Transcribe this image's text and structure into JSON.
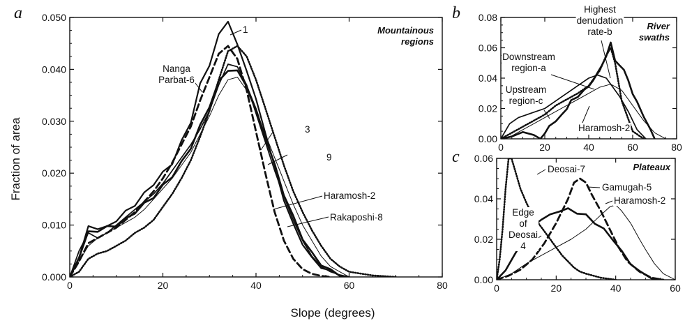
{
  "figure": {
    "xlabel": "Slope (degrees)",
    "ylabel": "Fraction of area"
  },
  "chart_data": [
    {
      "panel": "a",
      "type": "line",
      "title": "Mountainous regions",
      "title_lines": [
        "Mountainous",
        "regions"
      ],
      "xlim": [
        0,
        80
      ],
      "ylim": [
        0,
        0.05
      ],
      "xticks": [
        0,
        20,
        40,
        60,
        80
      ],
      "yticks": [
        0.0,
        0.01,
        0.02,
        0.03,
        0.04,
        0.05
      ],
      "ytick_labels": [
        "0.000",
        "0.010",
        "0.020",
        "0.030",
        "0.040",
        "0.050"
      ],
      "grid": false,
      "series": [
        {
          "name": "1",
          "style": "dotted",
          "x": [
            0,
            2,
            4,
            6,
            8,
            10,
            12,
            14,
            16,
            18,
            20,
            22,
            24,
            26,
            28,
            30,
            32,
            34,
            36,
            38,
            40,
            42,
            44,
            46,
            48,
            50,
            52,
            54,
            56,
            58,
            60,
            65,
            70
          ],
          "y": [
            0,
            0.001,
            0.0035,
            0.0045,
            0.005,
            0.006,
            0.007,
            0.0085,
            0.0095,
            0.011,
            0.0135,
            0.016,
            0.019,
            0.0225,
            0.027,
            0.032,
            0.038,
            0.0435,
            0.0445,
            0.0425,
            0.038,
            0.0325,
            0.027,
            0.0215,
            0.0165,
            0.0125,
            0.009,
            0.006,
            0.0035,
            0.002,
            0.001,
            0.0003,
            0
          ]
        },
        {
          "name": "3",
          "style": "solid-thick",
          "x": [
            0,
            2,
            4,
            6,
            8,
            10,
            12,
            14,
            16,
            18,
            20,
            22,
            24,
            26,
            28,
            30,
            32,
            34,
            36,
            38,
            40,
            42,
            44,
            46,
            48,
            50,
            52,
            54,
            56,
            58,
            60
          ],
          "y": [
            0,
            0.004,
            0.0085,
            0.009,
            0.0095,
            0.01,
            0.011,
            0.0125,
            0.014,
            0.0155,
            0.0175,
            0.0195,
            0.022,
            0.025,
            0.029,
            0.033,
            0.0375,
            0.04,
            0.0395,
            0.037,
            0.032,
            0.027,
            0.0215,
            0.016,
            0.0115,
            0.0075,
            0.0045,
            0.0025,
            0.0012,
            0.0005,
            0
          ]
        },
        {
          "name": "9",
          "style": "solid-thin",
          "x": [
            0,
            2,
            4,
            6,
            8,
            10,
            12,
            14,
            16,
            18,
            20,
            22,
            24,
            26,
            28,
            30,
            32,
            34,
            36,
            38,
            40,
            42,
            44,
            46,
            48,
            50,
            52,
            54,
            56,
            58,
            60
          ],
          "y": [
            0,
            0.003,
            0.006,
            0.0075,
            0.0085,
            0.0095,
            0.0105,
            0.0115,
            0.013,
            0.015,
            0.017,
            0.019,
            0.0215,
            0.024,
            0.0275,
            0.031,
            0.035,
            0.038,
            0.0385,
            0.036,
            0.032,
            0.0275,
            0.023,
            0.0185,
            0.014,
            0.01,
            0.007,
            0.004,
            0.002,
            0.001,
            0
          ]
        },
        {
          "name": "Haramosh-2",
          "style": "solid-medium",
          "x": [
            0,
            2,
            4,
            6,
            8,
            10,
            12,
            14,
            16,
            18,
            20,
            22,
            24,
            26,
            28,
            30,
            32,
            34,
            36,
            38,
            40,
            42,
            44,
            46,
            48,
            50,
            52,
            54,
            56,
            58,
            60
          ],
          "y": [
            0,
            0.005,
            0.0085,
            0.0075,
            0.0085,
            0.01,
            0.0115,
            0.013,
            0.0145,
            0.016,
            0.018,
            0.0205,
            0.023,
            0.0255,
            0.0285,
            0.032,
            0.037,
            0.041,
            0.0405,
            0.037,
            0.0315,
            0.026,
            0.0205,
            0.0155,
            0.011,
            0.007,
            0.004,
            0.002,
            0.001,
            0.0004,
            0
          ]
        },
        {
          "name": "Rakaposhi-8",
          "style": "solid-jagged",
          "x": [
            0,
            2,
            4,
            6,
            8,
            10,
            12,
            14,
            16,
            18,
            20,
            22,
            24,
            26,
            28,
            30,
            32,
            34,
            36,
            38,
            40,
            42,
            44,
            46,
            48,
            50,
            52,
            54,
            56,
            58,
            60
          ],
          "y": [
            0,
            0.004,
            0.0095,
            0.0095,
            0.0095,
            0.011,
            0.0125,
            0.014,
            0.016,
            0.018,
            0.02,
            0.022,
            0.026,
            0.03,
            0.037,
            0.041,
            0.0465,
            0.0495,
            0.0445,
            0.04,
            0.034,
            0.028,
            0.021,
            0.015,
            0.01,
            0.0065,
            0.0035,
            0.002,
            0.001,
            0.0005,
            0
          ]
        },
        {
          "name": "Nanga Parbat-6",
          "style": "dashed",
          "x": [
            0,
            2,
            4,
            6,
            8,
            10,
            12,
            14,
            16,
            18,
            20,
            22,
            24,
            26,
            28,
            30,
            32,
            34,
            36,
            38,
            40,
            42,
            44,
            46,
            48,
            50,
            52,
            54,
            56
          ],
          "y": [
            0,
            0.003,
            0.0065,
            0.0075,
            0.0085,
            0.0095,
            0.011,
            0.0125,
            0.0145,
            0.0165,
            0.019,
            0.022,
            0.0255,
            0.029,
            0.034,
            0.0385,
            0.043,
            0.0445,
            0.042,
            0.036,
            0.028,
            0.02,
            0.0125,
            0.007,
            0.0035,
            0.0015,
            0.0006,
            0.0002,
            0
          ]
        }
      ],
      "annotations": [
        {
          "text": "1",
          "lines": [
            "1"
          ]
        },
        {
          "text": "Nanga Parbat-6",
          "lines": [
            "Nanga",
            "Parbat-6"
          ]
        },
        {
          "text": "3",
          "lines": [
            "3"
          ]
        },
        {
          "text": "9",
          "lines": [
            "9"
          ]
        },
        {
          "text": "Haramosh-2",
          "lines": [
            "Haramosh-2"
          ]
        },
        {
          "text": "Rakaposhi-8",
          "lines": [
            "Rakaposhi-8"
          ]
        }
      ]
    },
    {
      "panel": "b",
      "type": "line",
      "title": "River swaths",
      "title_lines": [
        "River",
        "swaths"
      ],
      "xlim": [
        0,
        80
      ],
      "ylim": [
        0,
        0.08
      ],
      "xticks": [
        0,
        20,
        40,
        60,
        80
      ],
      "yticks": [
        0.0,
        0.02,
        0.04,
        0.06,
        0.08
      ],
      "ytick_labels": [
        "0.00",
        "0.02",
        "0.04",
        "0.06",
        "0.08"
      ],
      "grid": false,
      "series": [
        {
          "name": "Highest denudation rate-b",
          "style": "solid-thick",
          "x": [
            0,
            5,
            10,
            15,
            18,
            20,
            22,
            25,
            28,
            30,
            32,
            35,
            38,
            40,
            42,
            44,
            46,
            48,
            50,
            52,
            54,
            56,
            58,
            60,
            62,
            65,
            68,
            70
          ],
          "y": [
            0,
            0.002,
            0.004,
            0.003,
            0,
            0.004,
            0.008,
            0.012,
            0.016,
            0.02,
            0.025,
            0.028,
            0.032,
            0.035,
            0.038,
            0.044,
            0.048,
            0.055,
            0.063,
            0.052,
            0.048,
            0.046,
            0.038,
            0.03,
            0.024,
            0.015,
            0.006,
            0
          ]
        },
        {
          "name": "Downstream region-a",
          "style": "dotted",
          "x": [
            0,
            5,
            10,
            15,
            20,
            25,
            30,
            35,
            40,
            45,
            48,
            50,
            52,
            55,
            60,
            65
          ],
          "y": [
            0,
            0.004,
            0.008,
            0.012,
            0.016,
            0.022,
            0.026,
            0.03,
            0.035,
            0.045,
            0.055,
            0.06,
            0.05,
            0.025,
            0.005,
            0
          ]
        },
        {
          "name": "Upstream region-c",
          "style": "solid-medium",
          "x": [
            0,
            4,
            8,
            12,
            16,
            20,
            24,
            28,
            32,
            36,
            40,
            44,
            48,
            50,
            54,
            58,
            62,
            66
          ],
          "y": [
            0,
            0.01,
            0.014,
            0.016,
            0.018,
            0.02,
            0.024,
            0.028,
            0.032,
            0.036,
            0.04,
            0.042,
            0.04,
            0.036,
            0.028,
            0.018,
            0.006,
            0
          ]
        },
        {
          "name": "Haramosh-2",
          "style": "solid-thin",
          "x": [
            0,
            5,
            10,
            15,
            20,
            25,
            30,
            35,
            40,
            45,
            50,
            55,
            60,
            65,
            70,
            75
          ],
          "y": [
            0,
            0.002,
            0.006,
            0.01,
            0.014,
            0.018,
            0.022,
            0.026,
            0.03,
            0.034,
            0.036,
            0.032,
            0.022,
            0.012,
            0.004,
            0
          ]
        }
      ],
      "annotations": [
        {
          "text": "Highest denudation rate-b",
          "lines": [
            "Highest",
            "denudation",
            "rate-b"
          ]
        },
        {
          "text": "Downstream region-a",
          "lines": [
            "Downstream",
            "region-a"
          ]
        },
        {
          "text": "Upstream region-c",
          "lines": [
            "Upstream",
            "region-c"
          ]
        },
        {
          "text": "Haramosh-2",
          "lines": [
            "Haramosh-2"
          ]
        }
      ]
    },
    {
      "panel": "c",
      "type": "line",
      "title": "Plateaux",
      "title_lines": [
        "Plateaux"
      ],
      "xlim": [
        0,
        60
      ],
      "ylim": [
        0,
        0.06
      ],
      "xticks": [
        0,
        20,
        40,
        60
      ],
      "yticks": [
        0.0,
        0.02,
        0.04,
        0.06
      ],
      "ytick_labels": [
        "0.00",
        "0.02",
        "0.04",
        "0.06"
      ],
      "grid": false,
      "series": [
        {
          "name": "Deosai-7",
          "style": "dotted",
          "x": [
            0,
            1,
            2,
            3,
            4,
            5,
            6,
            8,
            10,
            12,
            14,
            16,
            18,
            20,
            22,
            24,
            26,
            28,
            30,
            35,
            40
          ],
          "y": [
            0,
            0.01,
            0.025,
            0.045,
            0.06,
            0.06,
            0.055,
            0.045,
            0.038,
            0.032,
            0.028,
            0.024,
            0.02,
            0.016,
            0.012,
            0.009,
            0.006,
            0.004,
            0.003,
            0.001,
            0
          ]
        },
        {
          "name": "Edge of Deosai 4",
          "style": "solid-thick",
          "x": [
            0,
            3,
            6,
            9,
            12,
            15,
            18,
            21,
            24,
            27,
            30,
            33,
            36,
            39,
            42,
            45,
            48,
            52,
            56
          ],
          "y": [
            0,
            0.005,
            0.012,
            0.02,
            0.026,
            0.03,
            0.032,
            0.034,
            0.035,
            0.033,
            0.032,
            0.028,
            0.025,
            0.02,
            0.014,
            0.008,
            0.004,
            0.001,
            0
          ]
        },
        {
          "name": "Gamugah-5",
          "style": "dashed",
          "x": [
            0,
            4,
            8,
            12,
            16,
            20,
            24,
            26,
            28,
            30,
            32,
            35,
            38,
            41,
            44,
            48,
            52,
            56
          ],
          "y": [
            0,
            0.002,
            0.005,
            0.01,
            0.018,
            0.028,
            0.04,
            0.048,
            0.05,
            0.048,
            0.042,
            0.034,
            0.025,
            0.016,
            0.009,
            0.004,
            0.001,
            0
          ]
        },
        {
          "name": "Haramosh-2",
          "style": "solid-thin",
          "x": [
            0,
            5,
            10,
            15,
            20,
            25,
            30,
            35,
            38,
            40,
            42,
            45,
            48,
            50,
            53,
            56,
            60
          ],
          "y": [
            0,
            0.003,
            0.008,
            0.012,
            0.016,
            0.02,
            0.025,
            0.032,
            0.036,
            0.037,
            0.034,
            0.028,
            0.02,
            0.015,
            0.008,
            0.003,
            0
          ]
        }
      ],
      "annotations": [
        {
          "text": "Deosai-7",
          "lines": [
            "Deosai-7"
          ]
        },
        {
          "text": "Gamugah-5",
          "lines": [
            "Gamugah-5"
          ]
        },
        {
          "text": "Edge of Deosai 4",
          "lines": [
            "Edge",
            "of",
            "Deosai",
            "4"
          ]
        },
        {
          "text": "Haramosh-2",
          "lines": [
            "Haramosh-2"
          ]
        }
      ]
    }
  ]
}
